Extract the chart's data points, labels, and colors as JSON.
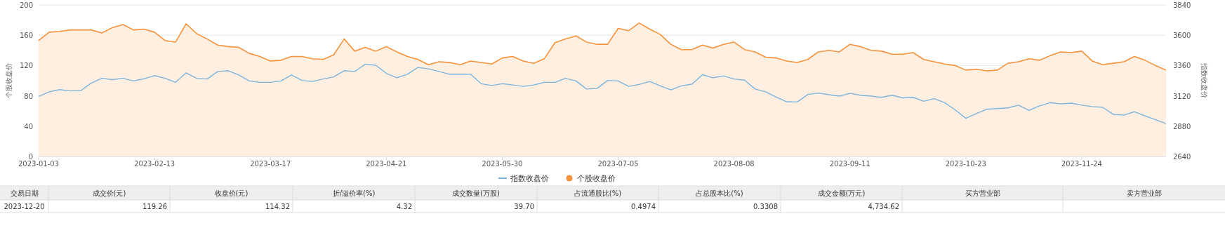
{
  "chart_data": {
    "type": "line",
    "ylabel": "个股收盘价",
    "y2label": "指数收盘价",
    "categories": [
      "2023-01-03",
      null,
      null,
      null,
      null,
      null,
      null,
      null,
      null,
      null,
      null,
      "2023-02-13",
      null,
      null,
      null,
      null,
      null,
      null,
      null,
      null,
      null,
      null,
      "2023-03-17",
      null,
      null,
      null,
      null,
      null,
      null,
      null,
      null,
      null,
      null,
      "2023-04-21",
      null,
      null,
      null,
      null,
      null,
      null,
      null,
      null,
      null,
      null,
      "2023-05-30",
      null,
      null,
      null,
      null,
      null,
      null,
      null,
      null,
      null,
      null,
      "2023-07-05",
      null,
      null,
      null,
      null,
      null,
      null,
      null,
      null,
      null,
      null,
      "2023-08-08",
      null,
      null,
      null,
      null,
      null,
      null,
      null,
      null,
      null,
      null,
      "2023-09-11",
      null,
      null,
      null,
      null,
      null,
      null,
      null,
      null,
      null,
      null,
      "2023-10-23",
      null,
      null,
      null,
      null,
      null,
      null,
      null,
      null,
      null,
      null,
      "2023-11-24",
      null,
      null,
      null,
      null,
      null,
      null,
      null,
      null
    ],
    "series": [
      {
        "name": "指数收盘价",
        "color": "#7cb4dc",
        "axis": "y2",
        "values": [
          3114,
          3152,
          3169,
          3159,
          3161,
          3221,
          3259,
          3248,
          3259,
          3238,
          3255,
          3280,
          3259,
          3227,
          3302,
          3259,
          3253,
          3313,
          3319,
          3285,
          3238,
          3227,
          3227,
          3238,
          3285,
          3242,
          3234,
          3253,
          3270,
          3319,
          3313,
          3370,
          3362,
          3298,
          3263,
          3291,
          3345,
          3334,
          3313,
          3291,
          3291,
          3291,
          3216,
          3202,
          3216,
          3206,
          3195,
          3206,
          3227,
          3227,
          3259,
          3238,
          3174,
          3178,
          3242,
          3238,
          3195,
          3210,
          3234,
          3199,
          3167,
          3199,
          3212,
          3287,
          3263,
          3278,
          3253,
          3244,
          3174,
          3152,
          3110,
          3073,
          3071,
          3131,
          3142,
          3129,
          3118,
          3139,
          3125,
          3118,
          3108,
          3125,
          3104,
          3108,
          3077,
          3098,
          3066,
          3008,
          2942,
          2979,
          3014,
          3019,
          3025,
          3046,
          3004,
          3041,
          3066,
          3056,
          3062,
          3046,
          3035,
          3029,
          2973,
          2967,
          2994,
          2962,
          2931,
          2900
        ]
      },
      {
        "name": "个股收盘价",
        "color": "#f7923a",
        "type": "area",
        "values": [
          153,
          164,
          165,
          167,
          167,
          167,
          163,
          170,
          174,
          167,
          168,
          164,
          153,
          151,
          175,
          162,
          155,
          147,
          145,
          144,
          136,
          132,
          126,
          127,
          132,
          132,
          129,
          128,
          134,
          155,
          139,
          144,
          139,
          145,
          138,
          132,
          128,
          121,
          125,
          124,
          121,
          126,
          124,
          122,
          130,
          132,
          126,
          123,
          129,
          150,
          155,
          159,
          151,
          148,
          148,
          169,
          166,
          176,
          168,
          161,
          148,
          141,
          141,
          147,
          143,
          148,
          151,
          141,
          138,
          131,
          130,
          126,
          124,
          128,
          138,
          140,
          138,
          148,
          145,
          140,
          139,
          135,
          135,
          137,
          128,
          125,
          122,
          120,
          114,
          115,
          113,
          114,
          123,
          125,
          129,
          127,
          133,
          138,
          137,
          139,
          126,
          121,
          123,
          125,
          132,
          127,
          120,
          114
        ]
      }
    ],
    "ylim": [
      0,
      200
    ],
    "yticks": [
      0,
      40,
      80,
      120,
      160,
      200
    ],
    "y2lim": [
      2640,
      3840
    ],
    "y2ticks": [
      2640,
      2880,
      3120,
      3360,
      3600,
      3840
    ],
    "grid": "y",
    "legend": "bottom",
    "marker": "none",
    "annotations": [
      "交易日期",
      "成交价(元)",
      "收盘价(元)",
      "折/溢价率(%)",
      "成交数量(万股)",
      "占流通股比(%)",
      "占总股本比(%)",
      "成交金额(万元)",
      "买方营业部",
      "卖方营业部",
      "2023-12-20",
      "119.26",
      "114.32",
      "4.32",
      "39.70",
      "0.4974",
      "0.3308",
      "4,734.62"
    ]
  }
}
